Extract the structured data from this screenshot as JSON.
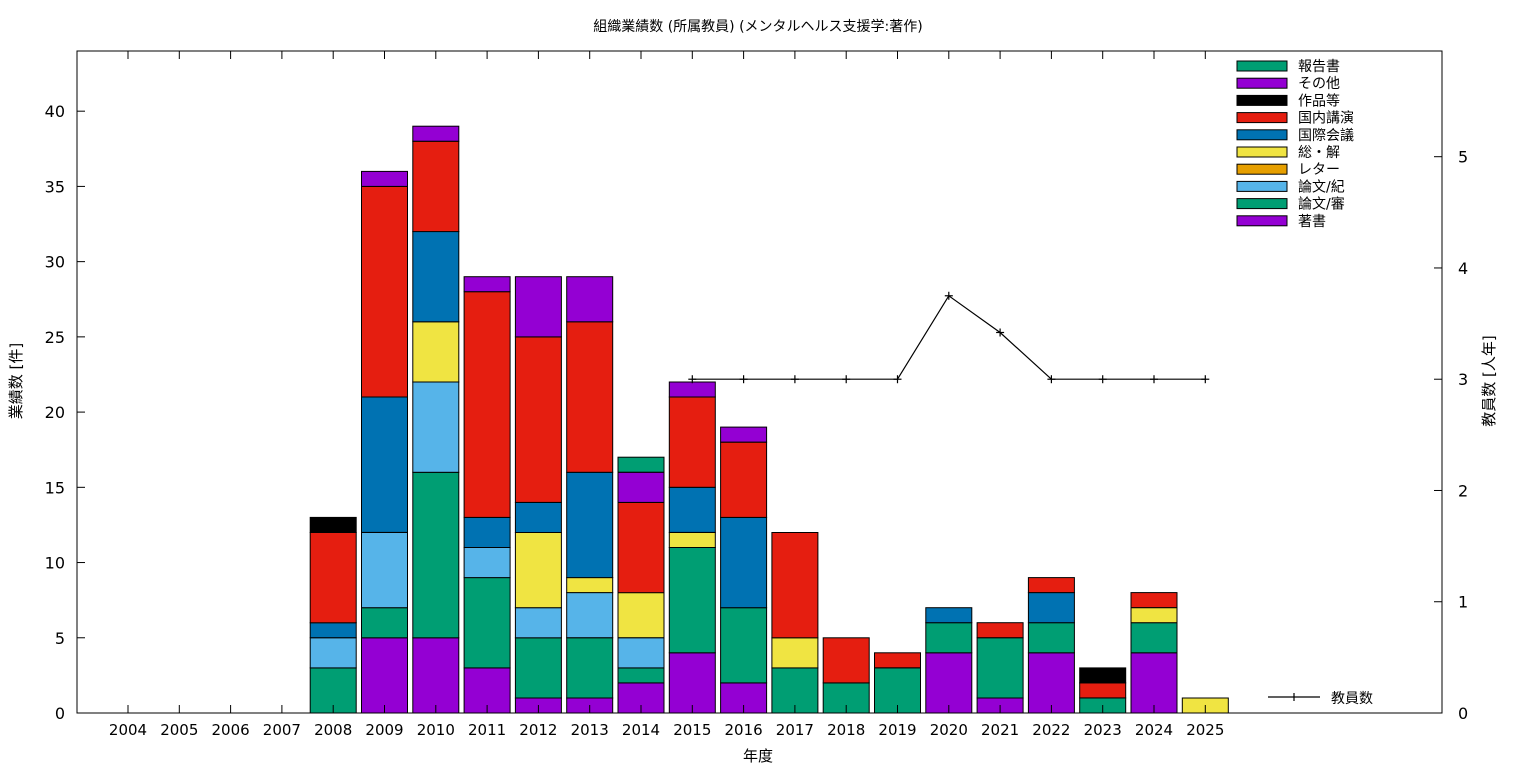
{
  "chart_data": {
    "type": "bar",
    "title": "組織業績数 (所属教員) (メンタルヘルス支援学:著作)",
    "xlabel": "年度",
    "ylabel": "業績数 [件]",
    "y2label": "教員数 [人年]",
    "ylim": [
      0,
      44
    ],
    "y2lim": [
      0,
      5.95
    ],
    "yticks": [
      0,
      5,
      10,
      15,
      20,
      25,
      30,
      35,
      40
    ],
    "y2ticks": [
      0,
      1,
      2,
      3,
      4,
      5
    ],
    "grid": false,
    "legend_position": "top-right",
    "categories": [
      "2004",
      "2005",
      "2006",
      "2007",
      "2008",
      "2009",
      "2010",
      "2011",
      "2012",
      "2013",
      "2014",
      "2015",
      "2016",
      "2017",
      "2018",
      "2019",
      "2020",
      "2021",
      "2022",
      "2023",
      "2024",
      "2025"
    ],
    "series": [
      {
        "name": "著書",
        "color": "#9400d3",
        "values": [
          0,
          0,
          0,
          0,
          0,
          5,
          5,
          3,
          1,
          1,
          2,
          4,
          2,
          0,
          0,
          0,
          4,
          1,
          4,
          0,
          4,
          0
        ]
      },
      {
        "name": "論文/審",
        "color": "#009e73",
        "values": [
          0,
          0,
          0,
          0,
          3,
          2,
          11,
          6,
          4,
          4,
          1,
          7,
          5,
          3,
          2,
          3,
          2,
          4,
          2,
          1,
          2,
          0
        ]
      },
      {
        "name": "論文/紀",
        "color": "#56b4e9",
        "values": [
          0,
          0,
          0,
          0,
          2,
          5,
          6,
          2,
          2,
          3,
          2,
          0,
          0,
          0,
          0,
          0,
          0,
          0,
          0,
          0,
          0,
          0
        ]
      },
      {
        "name": "レター",
        "color": "#e69f00",
        "values": [
          0,
          0,
          0,
          0,
          0,
          0,
          0,
          0,
          0,
          0,
          0,
          0,
          0,
          0,
          0,
          0,
          0,
          0,
          0,
          0,
          0,
          0
        ]
      },
      {
        "name": "総・解",
        "color": "#f0e442",
        "values": [
          0,
          0,
          0,
          0,
          0,
          0,
          4,
          0,
          5,
          1,
          3,
          1,
          0,
          2,
          0,
          0,
          0,
          0,
          0,
          0,
          1,
          1
        ]
      },
      {
        "name": "国際会議",
        "color": "#0072b2",
        "values": [
          0,
          0,
          0,
          0,
          1,
          9,
          6,
          2,
          2,
          7,
          0,
          3,
          6,
          0,
          0,
          0,
          1,
          0,
          2,
          0,
          0,
          0
        ]
      },
      {
        "name": "国内講演",
        "color": "#e51e10",
        "values": [
          0,
          0,
          0,
          0,
          6,
          14,
          6,
          15,
          11,
          10,
          6,
          6,
          5,
          7,
          3,
          1,
          0,
          1,
          1,
          1,
          1,
          0
        ]
      },
      {
        "name": "作品等",
        "color": "#000000",
        "values": [
          0,
          0,
          0,
          0,
          1,
          0,
          0,
          0,
          0,
          0,
          0,
          0,
          0,
          0,
          0,
          0,
          0,
          0,
          0,
          1,
          0,
          0
        ]
      },
      {
        "name": "その他",
        "color": "#9400d3",
        "values": [
          0,
          0,
          0,
          0,
          0,
          1,
          1,
          1,
          4,
          3,
          2,
          1,
          1,
          0,
          0,
          0,
          0,
          0,
          0,
          0,
          0,
          0
        ]
      },
      {
        "name": "報告書",
        "color": "#009e73",
        "values": [
          0,
          0,
          0,
          0,
          0,
          0,
          0,
          0,
          0,
          0,
          1,
          0,
          0,
          0,
          0,
          0,
          0,
          0,
          0,
          0,
          0,
          0
        ]
      }
    ],
    "line_series": {
      "name": "教員数",
      "axis": "y2",
      "color": "#000000",
      "x": [
        "2015",
        "2016",
        "2017",
        "2018",
        "2019",
        "2020",
        "2021",
        "2022",
        "2023",
        "2024",
        "2025"
      ],
      "values": [
        3,
        3,
        3,
        3,
        3,
        3.75,
        3.42,
        3,
        3,
        3,
        3
      ]
    }
  }
}
